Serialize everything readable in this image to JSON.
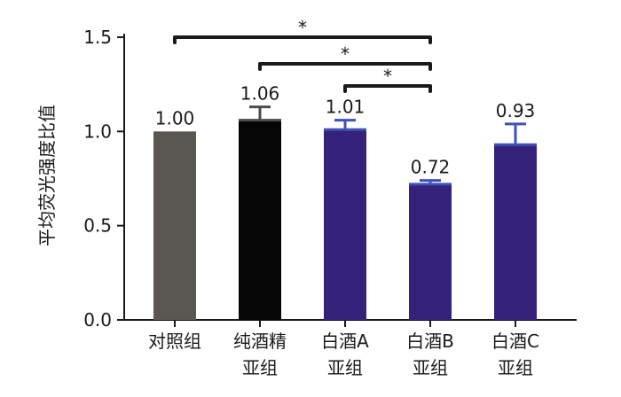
{
  "chart_data": {
    "type": "bar",
    "title": "",
    "xlabel": "",
    "ylabel": "平均荧光强度比值",
    "ylim": [
      0,
      1.5
    ],
    "yticks": [
      {
        "value": 0,
        "label": "0.0"
      },
      {
        "value": 0.5,
        "label": "0.5"
      },
      {
        "value": 1.0,
        "label": "1.0"
      },
      {
        "value": 1.5,
        "label": "1.5"
      }
    ],
    "categories": [
      {
        "line1": "对照组",
        "line2": ""
      },
      {
        "line1": "纯酒精",
        "line2": "亚组"
      },
      {
        "line1": "白酒A",
        "line2": "亚组"
      },
      {
        "line1": "白酒B",
        "line2": "亚组"
      },
      {
        "line1": "白酒C",
        "line2": "亚组"
      }
    ],
    "values": [
      1.0,
      1.06,
      1.01,
      0.72,
      0.93
    ],
    "value_labels": [
      "1.00",
      "1.06",
      "1.01",
      "0.72",
      "0.93"
    ],
    "error": [
      0,
      0.07,
      0.05,
      0.02,
      0.11
    ],
    "bar_colors": [
      "#5a5752",
      "#050505",
      "#34227a",
      "#34227a",
      "#34227a"
    ],
    "error_colors": [
      "#5a5752",
      "#4a4a4a",
      "#3f51b5",
      "#3f51b5",
      "#3f51b5"
    ],
    "significance": [
      {
        "from": 0,
        "to": 3,
        "label": "*"
      },
      {
        "from": 1,
        "to": 3,
        "label": "*"
      },
      {
        "from": 2,
        "to": 3,
        "label": "*"
      }
    ],
    "grid": false,
    "legend": "none"
  }
}
